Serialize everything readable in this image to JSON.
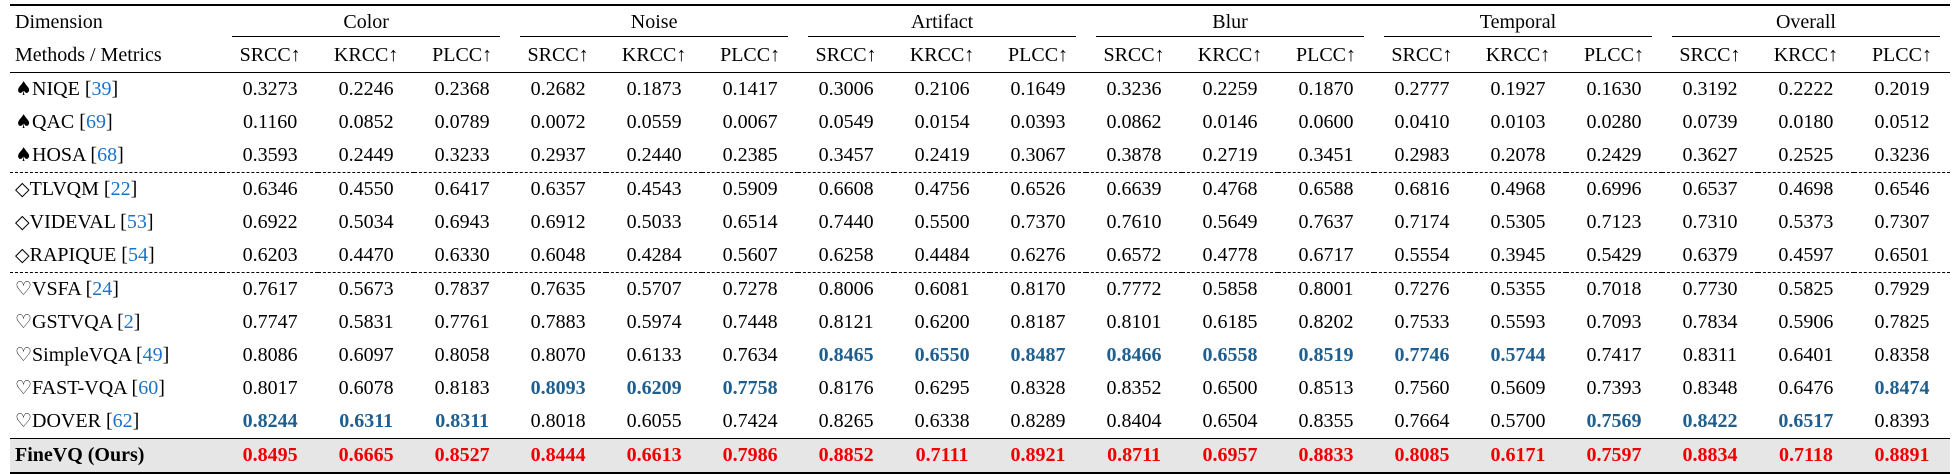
{
  "header": {
    "dimension_label": "Dimension",
    "methods_label": "Methods / Metrics",
    "groups": [
      "Color",
      "Noise",
      "Artifact",
      "Blur",
      "Temporal",
      "Overall"
    ],
    "metrics": [
      "SRCC↑",
      "KRCC↑",
      "PLCC↑"
    ]
  },
  "rows": [
    {
      "sym": "♠",
      "name": "NIQE",
      "ref": "39",
      "vals": [
        "0.3273",
        "0.2246",
        "0.2368",
        "0.2682",
        "0.1873",
        "0.1417",
        "0.3006",
        "0.2106",
        "0.1649",
        "0.3236",
        "0.2259",
        "0.1870",
        "0.2777",
        "0.1927",
        "0.1630",
        "0.3192",
        "0.2222",
        "0.2019"
      ],
      "blue": [],
      "dash": false
    },
    {
      "sym": "♠",
      "name": "QAC",
      "ref": "69",
      "vals": [
        "0.1160",
        "0.0852",
        "0.0789",
        "0.0072",
        "0.0559",
        "0.0067",
        "0.0549",
        "0.0154",
        "0.0393",
        "0.0862",
        "0.0146",
        "0.0600",
        "0.0410",
        "0.0103",
        "0.0280",
        "0.0739",
        "0.0180",
        "0.0512"
      ],
      "blue": [],
      "dash": false
    },
    {
      "sym": "♠",
      "name": "HOSA",
      "ref": "68",
      "vals": [
        "0.3593",
        "0.2449",
        "0.3233",
        "0.2937",
        "0.2440",
        "0.2385",
        "0.3457",
        "0.2419",
        "0.3067",
        "0.3878",
        "0.2719",
        "0.3451",
        "0.2983",
        "0.2078",
        "0.2429",
        "0.3627",
        "0.2525",
        "0.3236"
      ],
      "blue": [],
      "dash": false
    },
    {
      "sym": "◇",
      "name": "TLVQM",
      "ref": "22",
      "vals": [
        "0.6346",
        "0.4550",
        "0.6417",
        "0.6357",
        "0.4543",
        "0.5909",
        "0.6608",
        "0.4756",
        "0.6526",
        "0.6639",
        "0.4768",
        "0.6588",
        "0.6816",
        "0.4968",
        "0.6996",
        "0.6537",
        "0.4698",
        "0.6546"
      ],
      "blue": [],
      "dash": true
    },
    {
      "sym": "◇",
      "name": "VIDEVAL",
      "ref": "53",
      "vals": [
        "0.6922",
        "0.5034",
        "0.6943",
        "0.6912",
        "0.5033",
        "0.6514",
        "0.7440",
        "0.5500",
        "0.7370",
        "0.7610",
        "0.5649",
        "0.7637",
        "0.7174",
        "0.5305",
        "0.7123",
        "0.7310",
        "0.5373",
        "0.7307"
      ],
      "blue": [],
      "dash": false
    },
    {
      "sym": "◇",
      "name": "RAPIQUE",
      "ref": "54",
      "vals": [
        "0.6203",
        "0.4470",
        "0.6330",
        "0.6048",
        "0.4284",
        "0.5607",
        "0.6258",
        "0.4484",
        "0.6276",
        "0.6572",
        "0.4778",
        "0.6717",
        "0.5554",
        "0.3945",
        "0.5429",
        "0.6379",
        "0.4597",
        "0.6501"
      ],
      "blue": [],
      "dash": false
    },
    {
      "sym": "♡",
      "name": "VSFA",
      "ref": "24",
      "vals": [
        "0.7617",
        "0.5673",
        "0.7837",
        "0.7635",
        "0.5707",
        "0.7278",
        "0.8006",
        "0.6081",
        "0.8170",
        "0.7772",
        "0.5858",
        "0.8001",
        "0.7276",
        "0.5355",
        "0.7018",
        "0.7730",
        "0.5825",
        "0.7929"
      ],
      "blue": [],
      "dash": true
    },
    {
      "sym": "♡",
      "name": "GSTVQA",
      "ref": "2",
      "vals": [
        "0.7747",
        "0.5831",
        "0.7761",
        "0.7883",
        "0.5974",
        "0.7448",
        "0.8121",
        "0.6200",
        "0.8187",
        "0.8101",
        "0.6185",
        "0.8202",
        "0.7533",
        "0.5593",
        "0.7093",
        "0.7834",
        "0.5906",
        "0.7825"
      ],
      "blue": [],
      "dash": false
    },
    {
      "sym": "♡",
      "name": "SimpleVQA",
      "ref": "49",
      "vals": [
        "0.8086",
        "0.6097",
        "0.8058",
        "0.8070",
        "0.6133",
        "0.7634",
        "0.8465",
        "0.6550",
        "0.8487",
        "0.8466",
        "0.6558",
        "0.8519",
        "0.7746",
        "0.5744",
        "0.7417",
        "0.8311",
        "0.6401",
        "0.8358"
      ],
      "blue": [
        6,
        7,
        8,
        9,
        10,
        11,
        12,
        13
      ],
      "dash": false
    },
    {
      "sym": "♡",
      "name": "FAST-VQA",
      "ref": "60",
      "vals": [
        "0.8017",
        "0.6078",
        "0.8183",
        "0.8093",
        "0.6209",
        "0.7758",
        "0.8176",
        "0.6295",
        "0.8328",
        "0.8352",
        "0.6500",
        "0.8513",
        "0.7560",
        "0.5609",
        "0.7393",
        "0.8348",
        "0.6476",
        "0.8474"
      ],
      "blue": [
        3,
        4,
        5,
        17
      ],
      "dash": false
    },
    {
      "sym": "♡",
      "name": "DOVER",
      "ref": "62",
      "vals": [
        "0.8244",
        "0.6311",
        "0.8311",
        "0.8018",
        "0.6055",
        "0.7424",
        "0.8265",
        "0.6338",
        "0.8289",
        "0.8404",
        "0.6504",
        "0.8355",
        "0.7664",
        "0.5700",
        "0.7569",
        "0.8422",
        "0.6517",
        "0.8393"
      ],
      "blue": [
        0,
        1,
        2,
        14,
        15,
        16
      ],
      "dash": false
    }
  ],
  "ours": {
    "name": "FineVQ (Ours)",
    "vals": [
      "0.8495",
      "0.6665",
      "0.8527",
      "0.8444",
      "0.6613",
      "0.7986",
      "0.8852",
      "0.7111",
      "0.8921",
      "0.8711",
      "0.6957",
      "0.8833",
      "0.8085",
      "0.6171",
      "0.7597",
      "0.8834",
      "0.7118",
      "0.8891"
    ]
  }
}
